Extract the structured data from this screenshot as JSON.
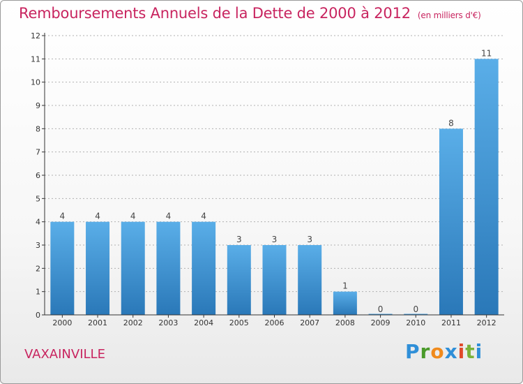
{
  "title": "Remboursements Annuels de la Dette de 2000 à 2012",
  "subtitle": "(en milliers d'€)",
  "location": "VAXAINVILLE",
  "logo": [
    "P",
    "r",
    "o",
    "x",
    "i",
    "t",
    "i"
  ],
  "colors": {
    "title": "#c8245f",
    "bar_top": "#5aaee8",
    "bar_bottom": "#2a78b8",
    "grid": "#b0b0b0",
    "axis": "#333333"
  },
  "chart_data": {
    "type": "bar",
    "title": "Remboursements Annuels de la Dette de 2000 à 2012",
    "subtitle": "(en milliers d'€)",
    "xlabel": "",
    "ylabel": "",
    "categories": [
      "2000",
      "2001",
      "2002",
      "2003",
      "2004",
      "2005",
      "2006",
      "2007",
      "2008",
      "2009",
      "2010",
      "2011",
      "2012"
    ],
    "values": [
      4,
      4,
      4,
      4,
      4,
      3,
      3,
      3,
      1,
      0,
      0,
      8,
      11
    ],
    "data_labels": [
      "4",
      "4",
      "4",
      "4",
      "4",
      "3",
      "3",
      "3",
      "1",
      "0",
      "0",
      "8",
      "11"
    ],
    "ylim": [
      0,
      12
    ],
    "yticks": [
      0,
      1,
      2,
      3,
      4,
      5,
      6,
      7,
      8,
      9,
      10,
      11,
      12
    ],
    "grid": true,
    "legend": "none"
  }
}
